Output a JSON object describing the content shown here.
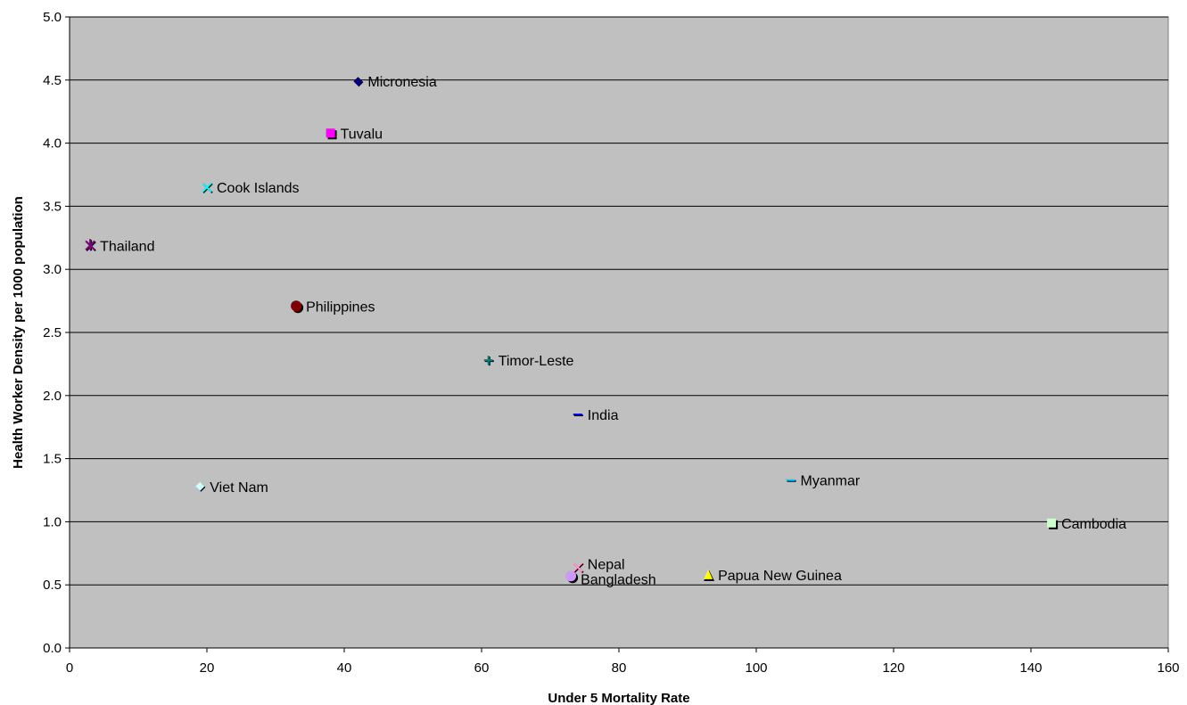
{
  "chart_data": {
    "type": "scatter",
    "title": "",
    "xlabel": "Under 5 Mortality Rate",
    "ylabel": "Health Worker Density per 1000 population",
    "xlim": [
      0,
      160
    ],
    "ylim": [
      0,
      5.0
    ],
    "x_ticks": [
      0,
      20,
      40,
      60,
      80,
      100,
      120,
      140,
      160
    ],
    "y_ticks": [
      "0.0",
      "0.5",
      "1.0",
      "1.5",
      "2.0",
      "2.5",
      "3.0",
      "3.5",
      "4.0",
      "4.5",
      "5.0"
    ],
    "grid": "horizontal",
    "background_color": "#c0c0c0",
    "points": [
      {
        "label": "Micronesia",
        "x": 42,
        "y": 4.49,
        "color": "#000080",
        "marker": "diamond"
      },
      {
        "label": "Tuvalu",
        "x": 38,
        "y": 4.08,
        "color": "#ff00ff",
        "marker": "square"
      },
      {
        "label": "Cook Islands",
        "x": 20,
        "y": 3.65,
        "color": "#00ffff",
        "marker": "x"
      },
      {
        "label": "Thailand",
        "x": 3,
        "y": 3.19,
        "color": "#800080",
        "marker": "star"
      },
      {
        "label": "Philippines",
        "x": 33,
        "y": 2.71,
        "color": "#800000",
        "marker": "circle"
      },
      {
        "label": "Timor-Leste",
        "x": 61,
        "y": 2.28,
        "color": "#008080",
        "marker": "plus"
      },
      {
        "label": "India",
        "x": 74,
        "y": 1.85,
        "color": "#0000ff",
        "marker": "dash"
      },
      {
        "label": "Myanmar",
        "x": 105,
        "y": 1.33,
        "color": "#00ccff",
        "marker": "dash"
      },
      {
        "label": "Viet Nam",
        "x": 19,
        "y": 1.28,
        "color": "#ccffff",
        "marker": "diamond"
      },
      {
        "label": "Cambodia",
        "x": 143,
        "y": 0.99,
        "color": "#ccffcc",
        "marker": "square"
      },
      {
        "label": "Nepal",
        "x": 74,
        "y": 0.64,
        "color": "#ff99cc",
        "marker": "x"
      },
      {
        "label": "Papua New Guinea",
        "x": 93,
        "y": 0.58,
        "color": "#ffff00",
        "marker": "triangle"
      },
      {
        "label": "Bangladesh",
        "x": 73,
        "y": 0.57,
        "color": "#cc99ff",
        "marker": "circle"
      }
    ]
  }
}
